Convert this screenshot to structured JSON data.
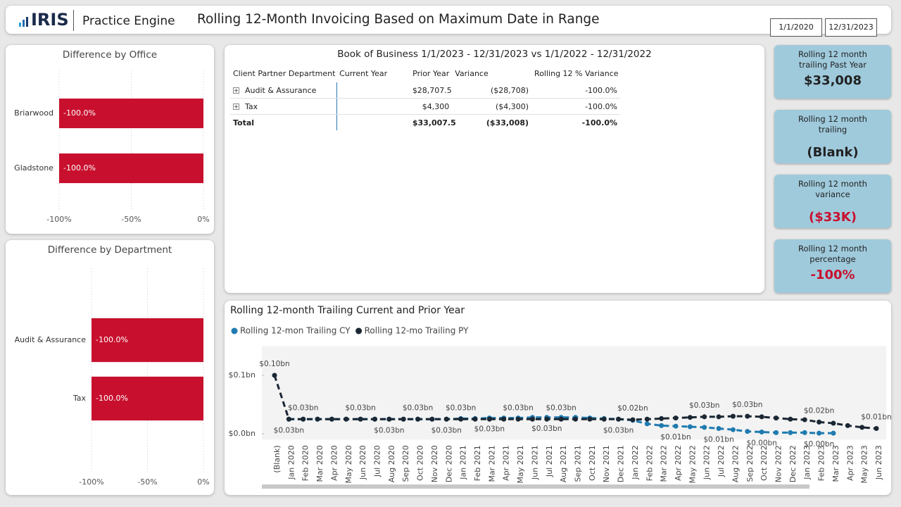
{
  "header": {
    "logo": "IRIS",
    "product": "Practice Engine",
    "title": "Rolling 12-Month Invoicing Based on Maximum Date in Range",
    "date_start": "1/1/2020",
    "date_end": "12/31/2023"
  },
  "table": {
    "title": "Book of Business 1/1/2023 - 12/31/2023 vs 1/1/2022 - 12/31/2022",
    "columns": [
      "Client Partner Department",
      "Current Year",
      "Prior Year",
      "Variance",
      "Rolling 12 % Variance"
    ],
    "rows": [
      [
        "Audit & Assurance",
        null,
        "$28,707.5",
        "($28,708)",
        "-100.0%"
      ],
      [
        "Tax",
        null,
        "$4,300",
        "($4,300)",
        "-100.0%"
      ]
    ],
    "total": [
      "Total",
      null,
      "$33,007.5",
      "($33,008)",
      "-100.0%"
    ]
  },
  "cards": [
    {
      "label": "Rolling 12 month trailing Past Year",
      "value": "$33,008"
    },
    {
      "label": "Rolling 12 month trailing",
      "value": "(Blank)"
    },
    {
      "label": "Rolling 12 month variance",
      "value": "($33K)"
    },
    {
      "label": "Rolling 12 month percentage",
      "value": "-100%"
    }
  ],
  "chart_data": [
    {
      "type": "hbar",
      "title": "Difference by Office",
      "categories": [
        "Briarwood",
        "Gladstone"
      ],
      "values": [
        -100,
        -100
      ],
      "value_labels": [
        "-100.0%",
        "-100.0%"
      ],
      "color": "#c8102e",
      "xlim": [
        -100,
        0
      ],
      "xticks": [
        {
          "value": -100,
          "label": "-100%"
        },
        {
          "value": -50,
          "label": "-50%"
        },
        {
          "value": 0,
          "label": "0%"
        }
      ],
      "grid": true
    },
    {
      "type": "hbar",
      "title": "Difference by Department",
      "categories": [
        "Audit & Assurance",
        "Tax"
      ],
      "values": [
        -100,
        -100
      ],
      "value_labels": [
        "-100.0%",
        "-100.0%"
      ],
      "color": "#c8102e",
      "xlim": [
        -100,
        0
      ],
      "xticks": [
        {
          "value": -100,
          "label": "-100%"
        },
        {
          "value": -50,
          "label": "-50%"
        },
        {
          "value": 0,
          "label": "0%"
        }
      ],
      "grid": true
    },
    {
      "type": "line",
      "title": "Rolling 12-month Trailing Current and Prior Year",
      "categories": [
        "(Blank)",
        "Jan 2020",
        "Feb 2020",
        "Mar 2020",
        "Apr 2020",
        "May 2020",
        "Jun 2020",
        "Jul 2020",
        "Aug 2020",
        "Sep 2020",
        "Oct 2020",
        "Nov 2020",
        "Dec 2020",
        "Jan 2021",
        "Feb 2021",
        "Mar 2021",
        "Apr 2021",
        "May 2021",
        "Jun 2021",
        "Jul 2021",
        "Aug 2021",
        "Sep 2021",
        "Oct 2021",
        "Nov 2021",
        "Dec 2021",
        "Jan 2022",
        "Feb 2022",
        "Mar 2022",
        "Apr 2022",
        "May 2022",
        "Jun 2022",
        "Jul 2022",
        "Aug 2022",
        "Sep 2022",
        "Oct 2022",
        "Nov 2022",
        "Dec 2022",
        "Jan 2023",
        "Feb 2023",
        "Mar 2023",
        "Apr 2023",
        "May 2023",
        "Jun 2023"
      ],
      "series": [
        {
          "name": "Rolling 12-mon Trailing CY",
          "color": "#1f7bb0",
          "values": [
            null,
            0.025,
            0.025,
            0.025,
            0.025,
            0.025,
            0.025,
            0.025,
            0.025,
            0.025,
            0.025,
            0.025,
            0.025,
            0.026,
            0.026,
            0.027,
            0.027,
            0.027,
            0.028,
            0.028,
            0.028,
            0.028,
            0.027,
            0.026,
            0.025,
            0.023,
            0.017,
            0.014,
            0.013,
            0.012,
            0.011,
            0.009,
            0.007,
            0.004,
            0.003,
            0.002,
            0.002,
            0.002,
            0.001,
            0.001,
            null,
            null,
            null
          ],
          "value_labels": [
            null,
            "$0.03bn",
            null,
            null,
            null,
            null,
            null,
            null,
            "$0.03bn",
            null,
            null,
            null,
            "$0.03bn",
            null,
            null,
            "$0.03bn",
            null,
            null,
            null,
            "$0.03bn",
            null,
            null,
            null,
            null,
            "$0.03bn",
            null,
            null,
            null,
            "$0.01bn",
            null,
            null,
            "$0.01bn",
            null,
            null,
            "$0.00bn",
            null,
            null,
            null,
            "$0.00bn",
            null,
            null,
            null,
            null
          ]
        },
        {
          "name": "Rolling 12-mo Trailing PY",
          "color": "#1b2733",
          "values": [
            0.1,
            0.025,
            0.025,
            0.025,
            0.025,
            0.025,
            0.025,
            0.025,
            0.025,
            0.025,
            0.025,
            0.025,
            0.025,
            0.025,
            0.025,
            0.025,
            0.025,
            0.025,
            0.025,
            0.025,
            0.025,
            0.025,
            0.025,
            0.025,
            0.025,
            0.024,
            0.025,
            0.026,
            0.027,
            0.028,
            0.029,
            0.029,
            0.03,
            0.03,
            0.029,
            0.027,
            0.025,
            0.024,
            0.02,
            0.018,
            0.014,
            0.011,
            0.009
          ],
          "value_labels": [
            "$0.10bn",
            null,
            "$0.03bn",
            null,
            null,
            null,
            "$0.03bn",
            null,
            null,
            null,
            "$0.03bn",
            null,
            null,
            "$0.03bn",
            null,
            null,
            null,
            "$0.03bn",
            null,
            null,
            "$0.03bn",
            null,
            null,
            null,
            null,
            "$0.02bn",
            null,
            null,
            null,
            null,
            "$0.03bn",
            null,
            null,
            "$0.03bn",
            null,
            null,
            null,
            null,
            "$0.02bn",
            null,
            null,
            null,
            "$0.01bn"
          ]
        }
      ],
      "ylim": [
        -0.01,
        0.15
      ],
      "yticks": [
        {
          "value": 0,
          "label": "$0.0bn"
        },
        {
          "value": 0.1,
          "label": "$0.1bn"
        }
      ],
      "legend": "top-left"
    }
  ]
}
